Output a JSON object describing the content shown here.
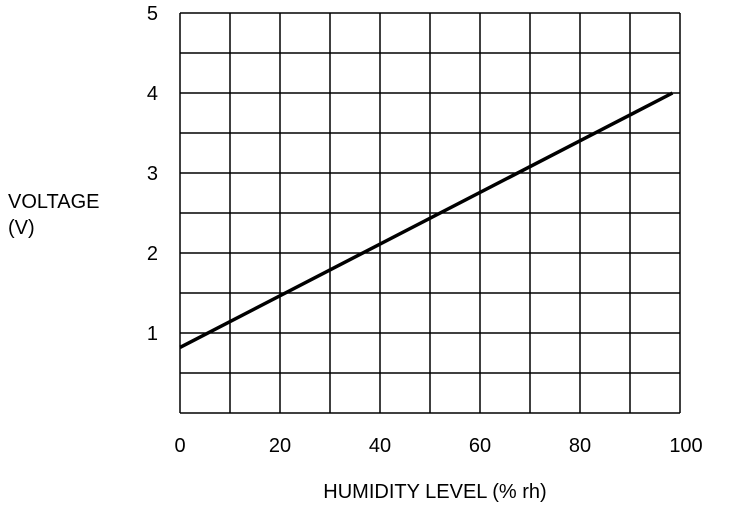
{
  "chart_data": {
    "type": "line",
    "title": "",
    "xlabel": "HUMIDITY LEVEL (% rh)",
    "ylabel_line1": "VOLTAGE",
    "ylabel_line2": "(V)",
    "xlim": [
      0,
      100
    ],
    "ylim": [
      0,
      5
    ],
    "x_ticks": [
      0,
      20,
      40,
      60,
      80,
      100
    ],
    "y_ticks": [
      1,
      2,
      3,
      4,
      5
    ],
    "x_grid_step": 10,
    "y_grid_step": 0.5,
    "grid": true,
    "series": [
      {
        "x": [
          0,
          98.5
        ],
        "y": [
          0.82,
          4.0
        ]
      }
    ]
  }
}
